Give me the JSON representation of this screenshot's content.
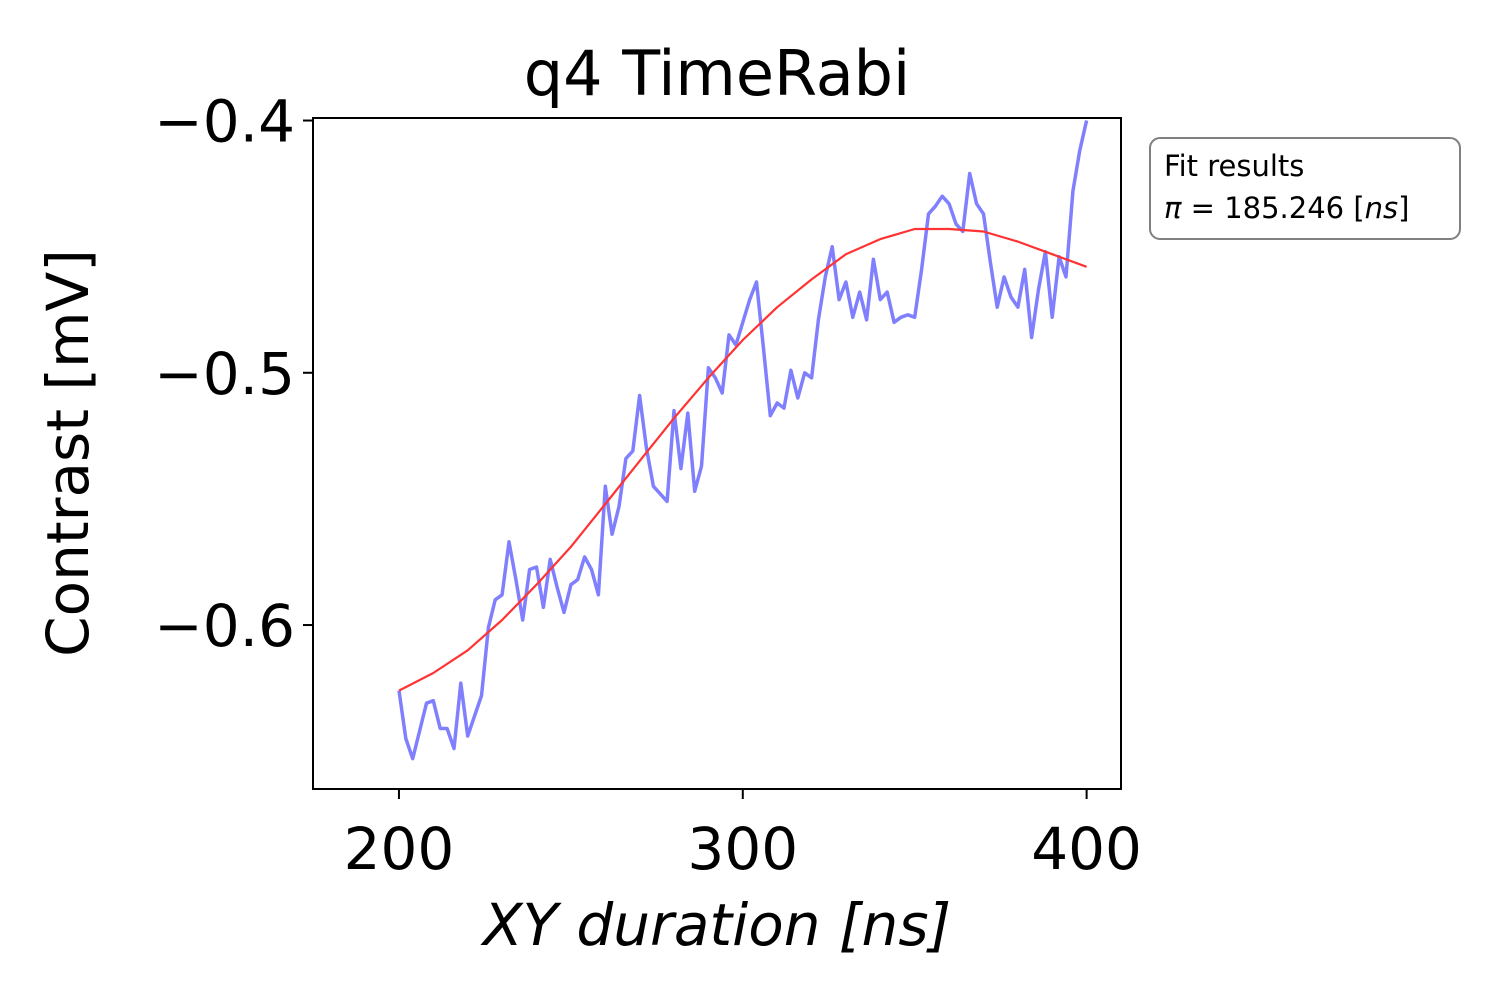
{
  "chart_data": {
    "type": "line",
    "title": "q4 TimeRabi",
    "xlabel": "XY duration [ns]",
    "ylabel": "Contrast [mV]",
    "xlim": [
      175,
      410
    ],
    "ylim": [
      -0.665,
      -0.399
    ],
    "x_ticks": [
      200,
      300,
      400
    ],
    "x_tick_labels": [
      "200",
      "300",
      "400"
    ],
    "y_ticks": [
      -0.4,
      -0.5,
      -0.6
    ],
    "y_tick_labels": [
      "−0.4",
      "−0.5",
      "−0.6"
    ],
    "grid": false,
    "series": [
      {
        "color": "#8080ff",
        "style": "measured",
        "x": [
          200,
          202,
          204,
          206,
          208,
          210,
          212,
          214,
          216,
          218,
          220,
          222,
          224,
          226,
          228,
          230,
          232,
          234,
          236,
          238,
          240,
          242,
          244,
          246,
          248,
          250,
          252,
          254,
          256,
          258,
          260,
          262,
          264,
          266,
          268,
          270,
          272,
          274,
          276,
          278,
          280,
          282,
          284,
          286,
          288,
          290,
          292,
          294,
          296,
          298,
          300,
          302,
          304,
          306,
          308,
          310,
          312,
          314,
          316,
          318,
          320,
          322,
          324,
          326,
          328,
          330,
          332,
          334,
          336,
          338,
          340,
          342,
          344,
          346,
          348,
          350,
          352,
          354,
          356,
          358,
          360,
          362,
          364,
          366,
          368,
          370,
          372,
          374,
          376,
          378,
          380,
          382,
          384,
          386,
          388,
          390,
          392,
          394,
          396,
          398,
          400
        ],
        "y": [
          -0.626,
          -0.645,
          -0.653,
          -0.642,
          -0.631,
          -0.63,
          -0.641,
          -0.641,
          -0.649,
          -0.623,
          -0.644,
          -0.636,
          -0.628,
          -0.601,
          -0.59,
          -0.588,
          -0.567,
          -0.582,
          -0.598,
          -0.578,
          -0.577,
          -0.593,
          -0.574,
          -0.585,
          -0.595,
          -0.584,
          -0.582,
          -0.573,
          -0.578,
          -0.588,
          -0.545,
          -0.564,
          -0.553,
          -0.534,
          -0.531,
          -0.509,
          -0.53,
          -0.545,
          -0.548,
          -0.551,
          -0.515,
          -0.538,
          -0.516,
          -0.547,
          -0.537,
          -0.498,
          -0.502,
          -0.508,
          -0.485,
          -0.489,
          -0.48,
          -0.471,
          -0.464,
          -0.49,
          -0.517,
          -0.512,
          -0.514,
          -0.499,
          -0.51,
          -0.5,
          -0.502,
          -0.479,
          -0.462,
          -0.45,
          -0.471,
          -0.464,
          -0.478,
          -0.468,
          -0.479,
          -0.455,
          -0.471,
          -0.468,
          -0.48,
          -0.478,
          -0.477,
          -0.478,
          -0.459,
          -0.437,
          -0.434,
          -0.43,
          -0.433,
          -0.441,
          -0.444,
          -0.421,
          -0.433,
          -0.437,
          -0.456,
          -0.474,
          -0.462,
          -0.47,
          -0.474,
          -0.459,
          -0.486,
          -0.467,
          -0.452,
          -0.478,
          -0.454,
          -0.462,
          -0.428,
          -0.412,
          -0.4
        ]
      },
      {
        "color": "#ff3333",
        "style": "fit",
        "x": [
          200,
          210,
          220,
          230,
          240,
          250,
          260,
          270,
          280,
          290,
          300,
          310,
          320,
          330,
          340,
          350,
          360,
          370,
          380,
          390,
          400
        ],
        "y": [
          -0.626,
          -0.619,
          -0.61,
          -0.598,
          -0.584,
          -0.569,
          -0.552,
          -0.535,
          -0.518,
          -0.502,
          -0.487,
          -0.474,
          -0.463,
          -0.453,
          -0.447,
          -0.443,
          -0.443,
          -0.444,
          -0.448,
          -0.453,
          -0.458
        ]
      }
    ],
    "legend": {
      "placement": "outside-right-top",
      "title": "Fit results",
      "entry_symbol": "π",
      "entry_value": " = 185.246 [",
      "entry_unit": "ns",
      "entry_close": "]"
    }
  }
}
